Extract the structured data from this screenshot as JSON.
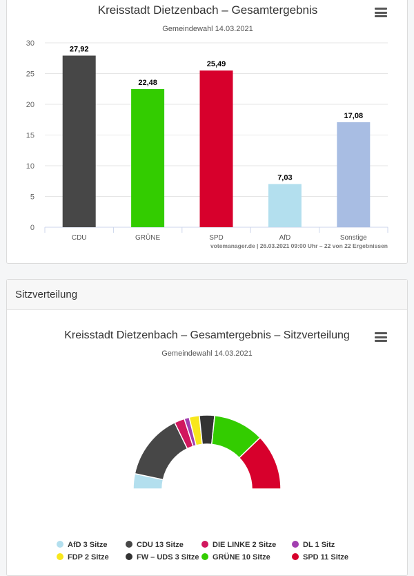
{
  "bar_card": {
    "title": "Kreisstadt Dietzenbach – Gesamtergebnis",
    "subtitle": "Gemeindewahl 14.03.2021",
    "credits": "votemanager.de | 26.03.2021 09:00 Uhr – 22 von 22 Ergebnissen",
    "menu_icon": "hamburger-menu-icon"
  },
  "seat_card": {
    "header": "Sitzverteilung",
    "title": "Kreisstadt Dietzenbach – Gesamtergebnis – Sitzverteilung",
    "subtitle": "Gemeindewahl 14.03.2021",
    "menu_icon": "hamburger-menu-icon"
  },
  "chart_data": [
    {
      "type": "bar",
      "title": "Kreisstadt Dietzenbach – Gesamtergebnis",
      "subtitle": "Gemeindewahl 14.03.2021",
      "categories": [
        "CDU",
        "GRÜNE",
        "SPD",
        "AfD",
        "Sonstige"
      ],
      "values": [
        27.92,
        22.48,
        25.49,
        7.03,
        17.08
      ],
      "value_labels": [
        "27,92",
        "22,48",
        "25,49",
        "7,03",
        "17,08"
      ],
      "colors": [
        "#474747",
        "#33cc00",
        "#d7002c",
        "#b3dfee",
        "#a8bde3"
      ],
      "ylim": [
        0,
        30
      ],
      "yticks": [
        0,
        5,
        10,
        15,
        20,
        25,
        30
      ],
      "grid": true,
      "legend": "none"
    },
    {
      "type": "pie",
      "variant": "semicircle-parliament",
      "title": "Kreisstadt Dietzenbach – Gesamtergebnis – Sitzverteilung",
      "subtitle": "Gemeindewahl 14.03.2021",
      "legend": "bottom",
      "slices": [
        {
          "name": "AfD",
          "seats": 3,
          "label": "AfD 3 Sitze",
          "color": "#b3dfee"
        },
        {
          "name": "CDU",
          "seats": 13,
          "label": "CDU 13 Sitze",
          "color": "#474747"
        },
        {
          "name": "DIE LINKE",
          "seats": 2,
          "label": "DIE LINKE 2 Sitze",
          "color": "#d1175e"
        },
        {
          "name": "DL",
          "seats": 1,
          "label": "DL 1 Sitz",
          "color": "#a23fb0"
        },
        {
          "name": "FDP",
          "seats": 2,
          "label": "FDP 2 Sitze",
          "color": "#f8e71c"
        },
        {
          "name": "FW – UDS",
          "seats": 3,
          "label": "FW – UDS 3 Sitze",
          "color": "#333333"
        },
        {
          "name": "GRÜNE",
          "seats": 10,
          "label": "GRÜNE 10 Sitze",
          "color": "#33cc00"
        },
        {
          "name": "SPD",
          "seats": 11,
          "label": "SPD 11 Sitze",
          "color": "#d7002c"
        }
      ]
    }
  ]
}
